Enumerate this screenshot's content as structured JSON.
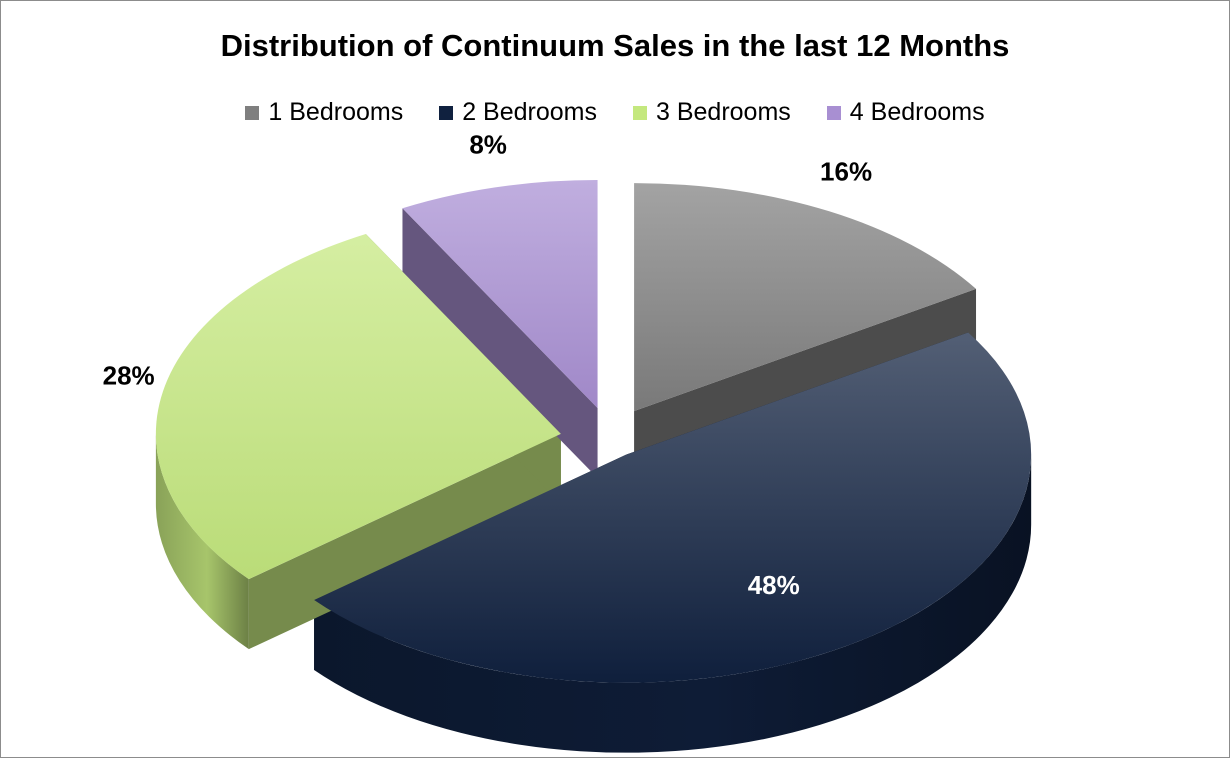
{
  "chart_data": {
    "type": "pie",
    "title": "Distribution of Continuum Sales in the last 12 Months",
    "categories": [
      "1 Bedrooms",
      "2 Bedrooms",
      "3 Bedrooms",
      "4 Bedrooms"
    ],
    "values": [
      16,
      48,
      28,
      8
    ],
    "data_labels": [
      "16%",
      "48%",
      "28%",
      "8%"
    ],
    "colors": [
      "#7f7f7f",
      "#10213f",
      "#c4e87e",
      "#a88fd2"
    ],
    "legend_position": "top",
    "style": "3d-exploded"
  }
}
